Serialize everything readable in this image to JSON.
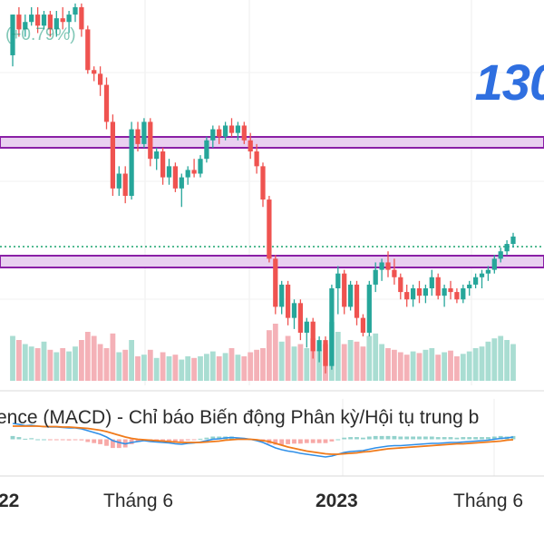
{
  "header": {
    "change_text": "(+0.79%)",
    "price_text": "130"
  },
  "macd_panel": {
    "title": "ence (MACD) - Chỉ báo Biến động Phân kỳ/Hội tụ trung b"
  },
  "colors": {
    "up": "#26a69a",
    "down": "#ef5350",
    "vol_up": "#a9ddd2",
    "vol_down": "#f4b1b7",
    "zone_fill": "#e9d0f0",
    "zone_line": "#8a1fa6",
    "macd_line": "#2f8fe8",
    "signal_line": "#f07a1a",
    "hline": "#1aa36f",
    "label_blue": "#2f6fe0"
  },
  "chart_data": {
    "type": "candlestick",
    "x_ticks": [
      "22",
      "Tháng 6",
      "2023",
      "Tháng 6"
    ],
    "resistance_zones": [
      "upper",
      "lower"
    ],
    "candles": [
      [
        0.88,
        0.99,
        0.85,
        0.99
      ],
      [
        0.99,
        1.01,
        0.93,
        0.95
      ],
      [
        0.95,
        0.99,
        0.93,
        0.97
      ],
      [
        0.97,
        1.01,
        0.96,
        0.99
      ],
      [
        0.99,
        1.01,
        0.94,
        0.96
      ],
      [
        0.96,
        1.0,
        0.95,
        0.99
      ],
      [
        0.99,
        1.0,
        0.93,
        0.95
      ],
      [
        0.95,
        1.0,
        0.93,
        0.98
      ],
      [
        0.98,
        1.01,
        0.95,
        0.97
      ],
      [
        0.97,
        1.0,
        0.94,
        0.99
      ],
      [
        0.99,
        1.02,
        0.97,
        1.01
      ],
      [
        1.01,
        1.02,
        0.93,
        0.95
      ],
      [
        0.95,
        0.96,
        0.83,
        0.84
      ],
      [
        0.84,
        0.85,
        0.81,
        0.83
      ],
      [
        0.83,
        0.85,
        0.77,
        0.8
      ],
      [
        0.8,
        0.82,
        0.68,
        0.7
      ],
      [
        0.7,
        0.72,
        0.5,
        0.52
      ],
      [
        0.52,
        0.58,
        0.5,
        0.56
      ],
      [
        0.56,
        0.58,
        0.48,
        0.5
      ],
      [
        0.5,
        0.7,
        0.49,
        0.68
      ],
      [
        0.68,
        0.7,
        0.62,
        0.64
      ],
      [
        0.64,
        0.71,
        0.63,
        0.7
      ],
      [
        0.7,
        0.71,
        0.58,
        0.6
      ],
      [
        0.6,
        0.63,
        0.57,
        0.62
      ],
      [
        0.62,
        0.63,
        0.53,
        0.55
      ],
      [
        0.55,
        0.6,
        0.53,
        0.58
      ],
      [
        0.58,
        0.59,
        0.51,
        0.52
      ],
      [
        0.52,
        0.56,
        0.47,
        0.55
      ],
      [
        0.55,
        0.58,
        0.53,
        0.57
      ],
      [
        0.57,
        0.6,
        0.55,
        0.56
      ],
      [
        0.56,
        0.61,
        0.55,
        0.6
      ],
      [
        0.6,
        0.66,
        0.59,
        0.65
      ],
      [
        0.65,
        0.69,
        0.63,
        0.68
      ],
      [
        0.68,
        0.69,
        0.64,
        0.66
      ],
      [
        0.66,
        0.7,
        0.65,
        0.69
      ],
      [
        0.69,
        0.71,
        0.66,
        0.67
      ],
      [
        0.67,
        0.7,
        0.65,
        0.69
      ],
      [
        0.69,
        0.7,
        0.64,
        0.65
      ],
      [
        0.65,
        0.67,
        0.6,
        0.62
      ],
      [
        0.62,
        0.64,
        0.56,
        0.58
      ],
      [
        0.58,
        0.59,
        0.47,
        0.49
      ],
      [
        0.49,
        0.5,
        0.32,
        0.33
      ],
      [
        0.33,
        0.34,
        0.18,
        0.2
      ],
      [
        0.2,
        0.27,
        0.18,
        0.26
      ],
      [
        0.26,
        0.27,
        0.15,
        0.17
      ],
      [
        0.17,
        0.22,
        0.14,
        0.21
      ],
      [
        0.21,
        0.22,
        0.11,
        0.13
      ],
      [
        0.13,
        0.17,
        0.09,
        0.16
      ],
      [
        0.16,
        0.17,
        0.06,
        0.08
      ],
      [
        0.08,
        0.12,
        0.05,
        0.11
      ],
      [
        0.11,
        0.12,
        0.02,
        0.04
      ],
      [
        0.04,
        0.26,
        0.03,
        0.25
      ],
      [
        0.25,
        0.31,
        0.18,
        0.29
      ],
      [
        0.29,
        0.3,
        0.18,
        0.2
      ],
      [
        0.2,
        0.27,
        0.19,
        0.26
      ],
      [
        0.26,
        0.27,
        0.15,
        0.17
      ],
      [
        0.17,
        0.18,
        0.12,
        0.13
      ],
      [
        0.13,
        0.27,
        0.12,
        0.26
      ],
      [
        0.26,
        0.32,
        0.24,
        0.3
      ],
      [
        0.3,
        0.33,
        0.27,
        0.32
      ],
      [
        0.32,
        0.35,
        0.28,
        0.3
      ],
      [
        0.3,
        0.33,
        0.26,
        0.28
      ],
      [
        0.28,
        0.29,
        0.22,
        0.24
      ],
      [
        0.24,
        0.26,
        0.2,
        0.22
      ],
      [
        0.22,
        0.26,
        0.2,
        0.25
      ],
      [
        0.25,
        0.27,
        0.21,
        0.23
      ],
      [
        0.23,
        0.26,
        0.21,
        0.25
      ],
      [
        0.25,
        0.3,
        0.23,
        0.28
      ],
      [
        0.28,
        0.29,
        0.22,
        0.23
      ],
      [
        0.23,
        0.26,
        0.2,
        0.25
      ],
      [
        0.25,
        0.27,
        0.22,
        0.24
      ],
      [
        0.24,
        0.25,
        0.21,
        0.22
      ],
      [
        0.22,
        0.26,
        0.21,
        0.25
      ],
      [
        0.25,
        0.27,
        0.23,
        0.26
      ],
      [
        0.26,
        0.29,
        0.25,
        0.28
      ],
      [
        0.28,
        0.3,
        0.25,
        0.29
      ],
      [
        0.29,
        0.31,
        0.27,
        0.3
      ],
      [
        0.3,
        0.34,
        0.29,
        0.33
      ],
      [
        0.33,
        0.36,
        0.32,
        0.35
      ],
      [
        0.35,
        0.38,
        0.34,
        0.37
      ],
      [
        0.37,
        0.4,
        0.36,
        0.39
      ]
    ],
    "volume": [
      0.55,
      0.5,
      0.45,
      0.42,
      0.4,
      0.48,
      0.38,
      0.35,
      0.4,
      0.36,
      0.42,
      0.5,
      0.6,
      0.55,
      0.45,
      0.4,
      0.58,
      0.35,
      0.38,
      0.5,
      0.3,
      0.32,
      0.38,
      0.28,
      0.35,
      0.3,
      0.32,
      0.26,
      0.3,
      0.28,
      0.3,
      0.33,
      0.36,
      0.3,
      0.34,
      0.4,
      0.32,
      0.3,
      0.35,
      0.38,
      0.4,
      0.62,
      0.7,
      0.48,
      0.55,
      0.42,
      0.45,
      0.4,
      0.52,
      0.38,
      0.45,
      0.72,
      0.6,
      0.45,
      0.5,
      0.48,
      0.42,
      0.55,
      0.58,
      0.45,
      0.4,
      0.38,
      0.35,
      0.32,
      0.36,
      0.34,
      0.38,
      0.4,
      0.32,
      0.35,
      0.37,
      0.3,
      0.33,
      0.36,
      0.4,
      0.42,
      0.48,
      0.52,
      0.55,
      0.5,
      0.45
    ],
    "macd": [
      0.9,
      0.88,
      0.85,
      0.86,
      0.84,
      0.83,
      0.82,
      0.82,
      0.81,
      0.8,
      0.8,
      0.78,
      0.74,
      0.7,
      0.66,
      0.6,
      0.52,
      0.48,
      0.45,
      0.48,
      0.5,
      0.52,
      0.5,
      0.49,
      0.48,
      0.47,
      0.45,
      0.44,
      0.46,
      0.47,
      0.49,
      0.52,
      0.55,
      0.56,
      0.58,
      0.59,
      0.58,
      0.57,
      0.55,
      0.52,
      0.48,
      0.42,
      0.36,
      0.32,
      0.29,
      0.27,
      0.24,
      0.22,
      0.2,
      0.18,
      0.16,
      0.18,
      0.22,
      0.26,
      0.28,
      0.29,
      0.3,
      0.33,
      0.36,
      0.38,
      0.4,
      0.41,
      0.41,
      0.42,
      0.43,
      0.44,
      0.45,
      0.46,
      0.46,
      0.47,
      0.48,
      0.48,
      0.49,
      0.5,
      0.51,
      0.52,
      0.53,
      0.55,
      0.57,
      0.58,
      0.6
    ],
    "signal": [
      0.84,
      0.84,
      0.84,
      0.84,
      0.84,
      0.83,
      0.83,
      0.83,
      0.82,
      0.82,
      0.81,
      0.8,
      0.79,
      0.77,
      0.75,
      0.72,
      0.68,
      0.64,
      0.6,
      0.57,
      0.55,
      0.54,
      0.53,
      0.52,
      0.51,
      0.5,
      0.49,
      0.48,
      0.48,
      0.48,
      0.48,
      0.49,
      0.5,
      0.51,
      0.53,
      0.54,
      0.55,
      0.55,
      0.55,
      0.54,
      0.52,
      0.5,
      0.46,
      0.42,
      0.38,
      0.35,
      0.32,
      0.29,
      0.27,
      0.25,
      0.23,
      0.22,
      0.22,
      0.23,
      0.24,
      0.25,
      0.27,
      0.28,
      0.3,
      0.32,
      0.34,
      0.35,
      0.36,
      0.37,
      0.38,
      0.39,
      0.4,
      0.41,
      0.42,
      0.43,
      0.44,
      0.45,
      0.45,
      0.46,
      0.47,
      0.48,
      0.49,
      0.5,
      0.51,
      0.53,
      0.54
    ]
  }
}
